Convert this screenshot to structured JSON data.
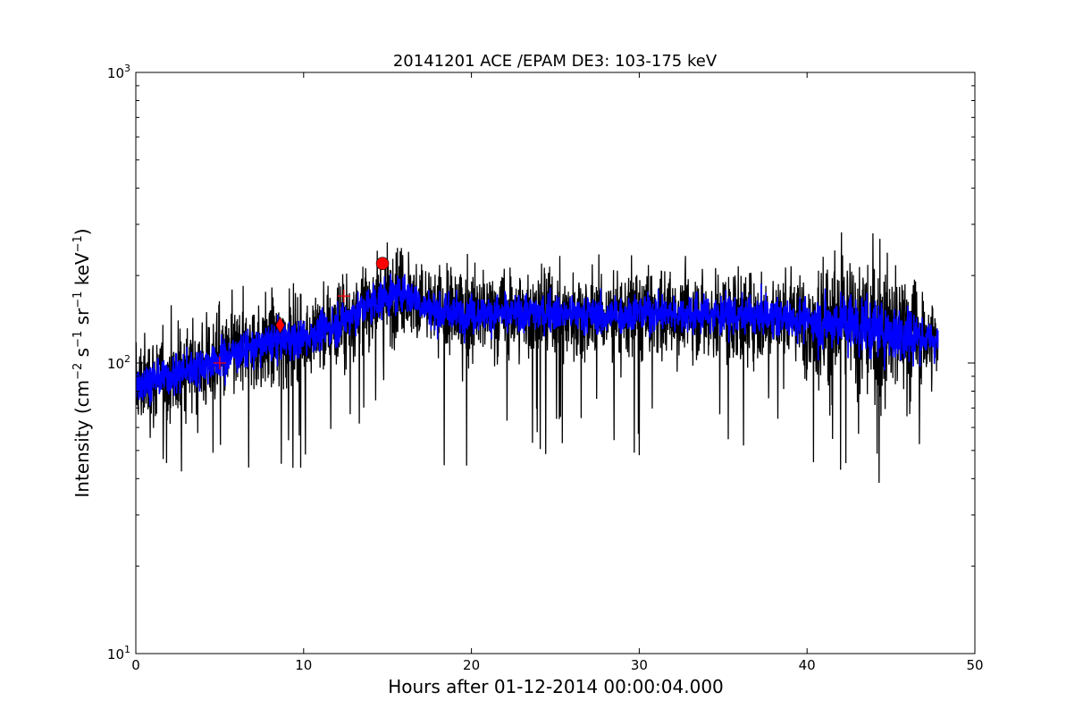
{
  "chart_data": {
    "type": "line",
    "title": "20141201 ACE /EPAM DE3: 103-175 keV",
    "xlabel": "Hours after 01-12-2014 00:00:04.000",
    "ylabel_parts": {
      "prefix": "Intensity (cm",
      "sup1": "−2",
      "s": " s",
      "sup2": "−1",
      "sr": " sr",
      "sup3": "−1",
      "kev": " keV",
      "sup4": "−1",
      "suffix": ")"
    },
    "xlim": [
      0,
      50
    ],
    "ylim": [
      10,
      1000
    ],
    "yscale": "log",
    "grid": false,
    "x_ticks": [
      "0",
      "10",
      "20",
      "30",
      "40",
      "50"
    ],
    "x_tick_values": [
      0,
      10,
      20,
      30,
      40,
      50
    ],
    "y_ticks": [
      {
        "value": 10,
        "base": "10",
        "exp": "1"
      },
      {
        "value": 100,
        "base": "10",
        "exp": "2"
      },
      {
        "value": 1000,
        "base": "10",
        "exp": "3"
      }
    ],
    "x_data_range": [
      0,
      47.8
    ],
    "baseline_profile": {
      "x": [
        0,
        2,
        4,
        6,
        8,
        10,
        12,
        13,
        14,
        15,
        16,
        17,
        18,
        20,
        22,
        24,
        26,
        28,
        30,
        32,
        34,
        36,
        38,
        40,
        41,
        42,
        43,
        44,
        45,
        46,
        47,
        47.8
      ],
      "y": [
        85,
        90,
        98,
        108,
        118,
        122,
        135,
        148,
        160,
        170,
        175,
        160,
        150,
        148,
        148,
        150,
        148,
        145,
        150,
        148,
        148,
        145,
        145,
        140,
        138,
        140,
        135,
        130,
        128,
        125,
        122,
        118
      ]
    },
    "series": [
      {
        "role": "raw",
        "color": "#000000"
      },
      {
        "role": "smoothed",
        "color": "#0000ff"
      }
    ],
    "markers": [
      {
        "shape": "plus",
        "x": 5.0,
        "y": 100,
        "color": "#ff0000"
      },
      {
        "shape": "diamond",
        "x": 8.6,
        "y": 135,
        "color": "#ff0000"
      },
      {
        "shape": "plus",
        "x": 12.4,
        "y": 170,
        "color": "#ff0000"
      },
      {
        "shape": "circle",
        "x": 14.7,
        "y": 220,
        "color": "#ff0000"
      }
    ]
  }
}
